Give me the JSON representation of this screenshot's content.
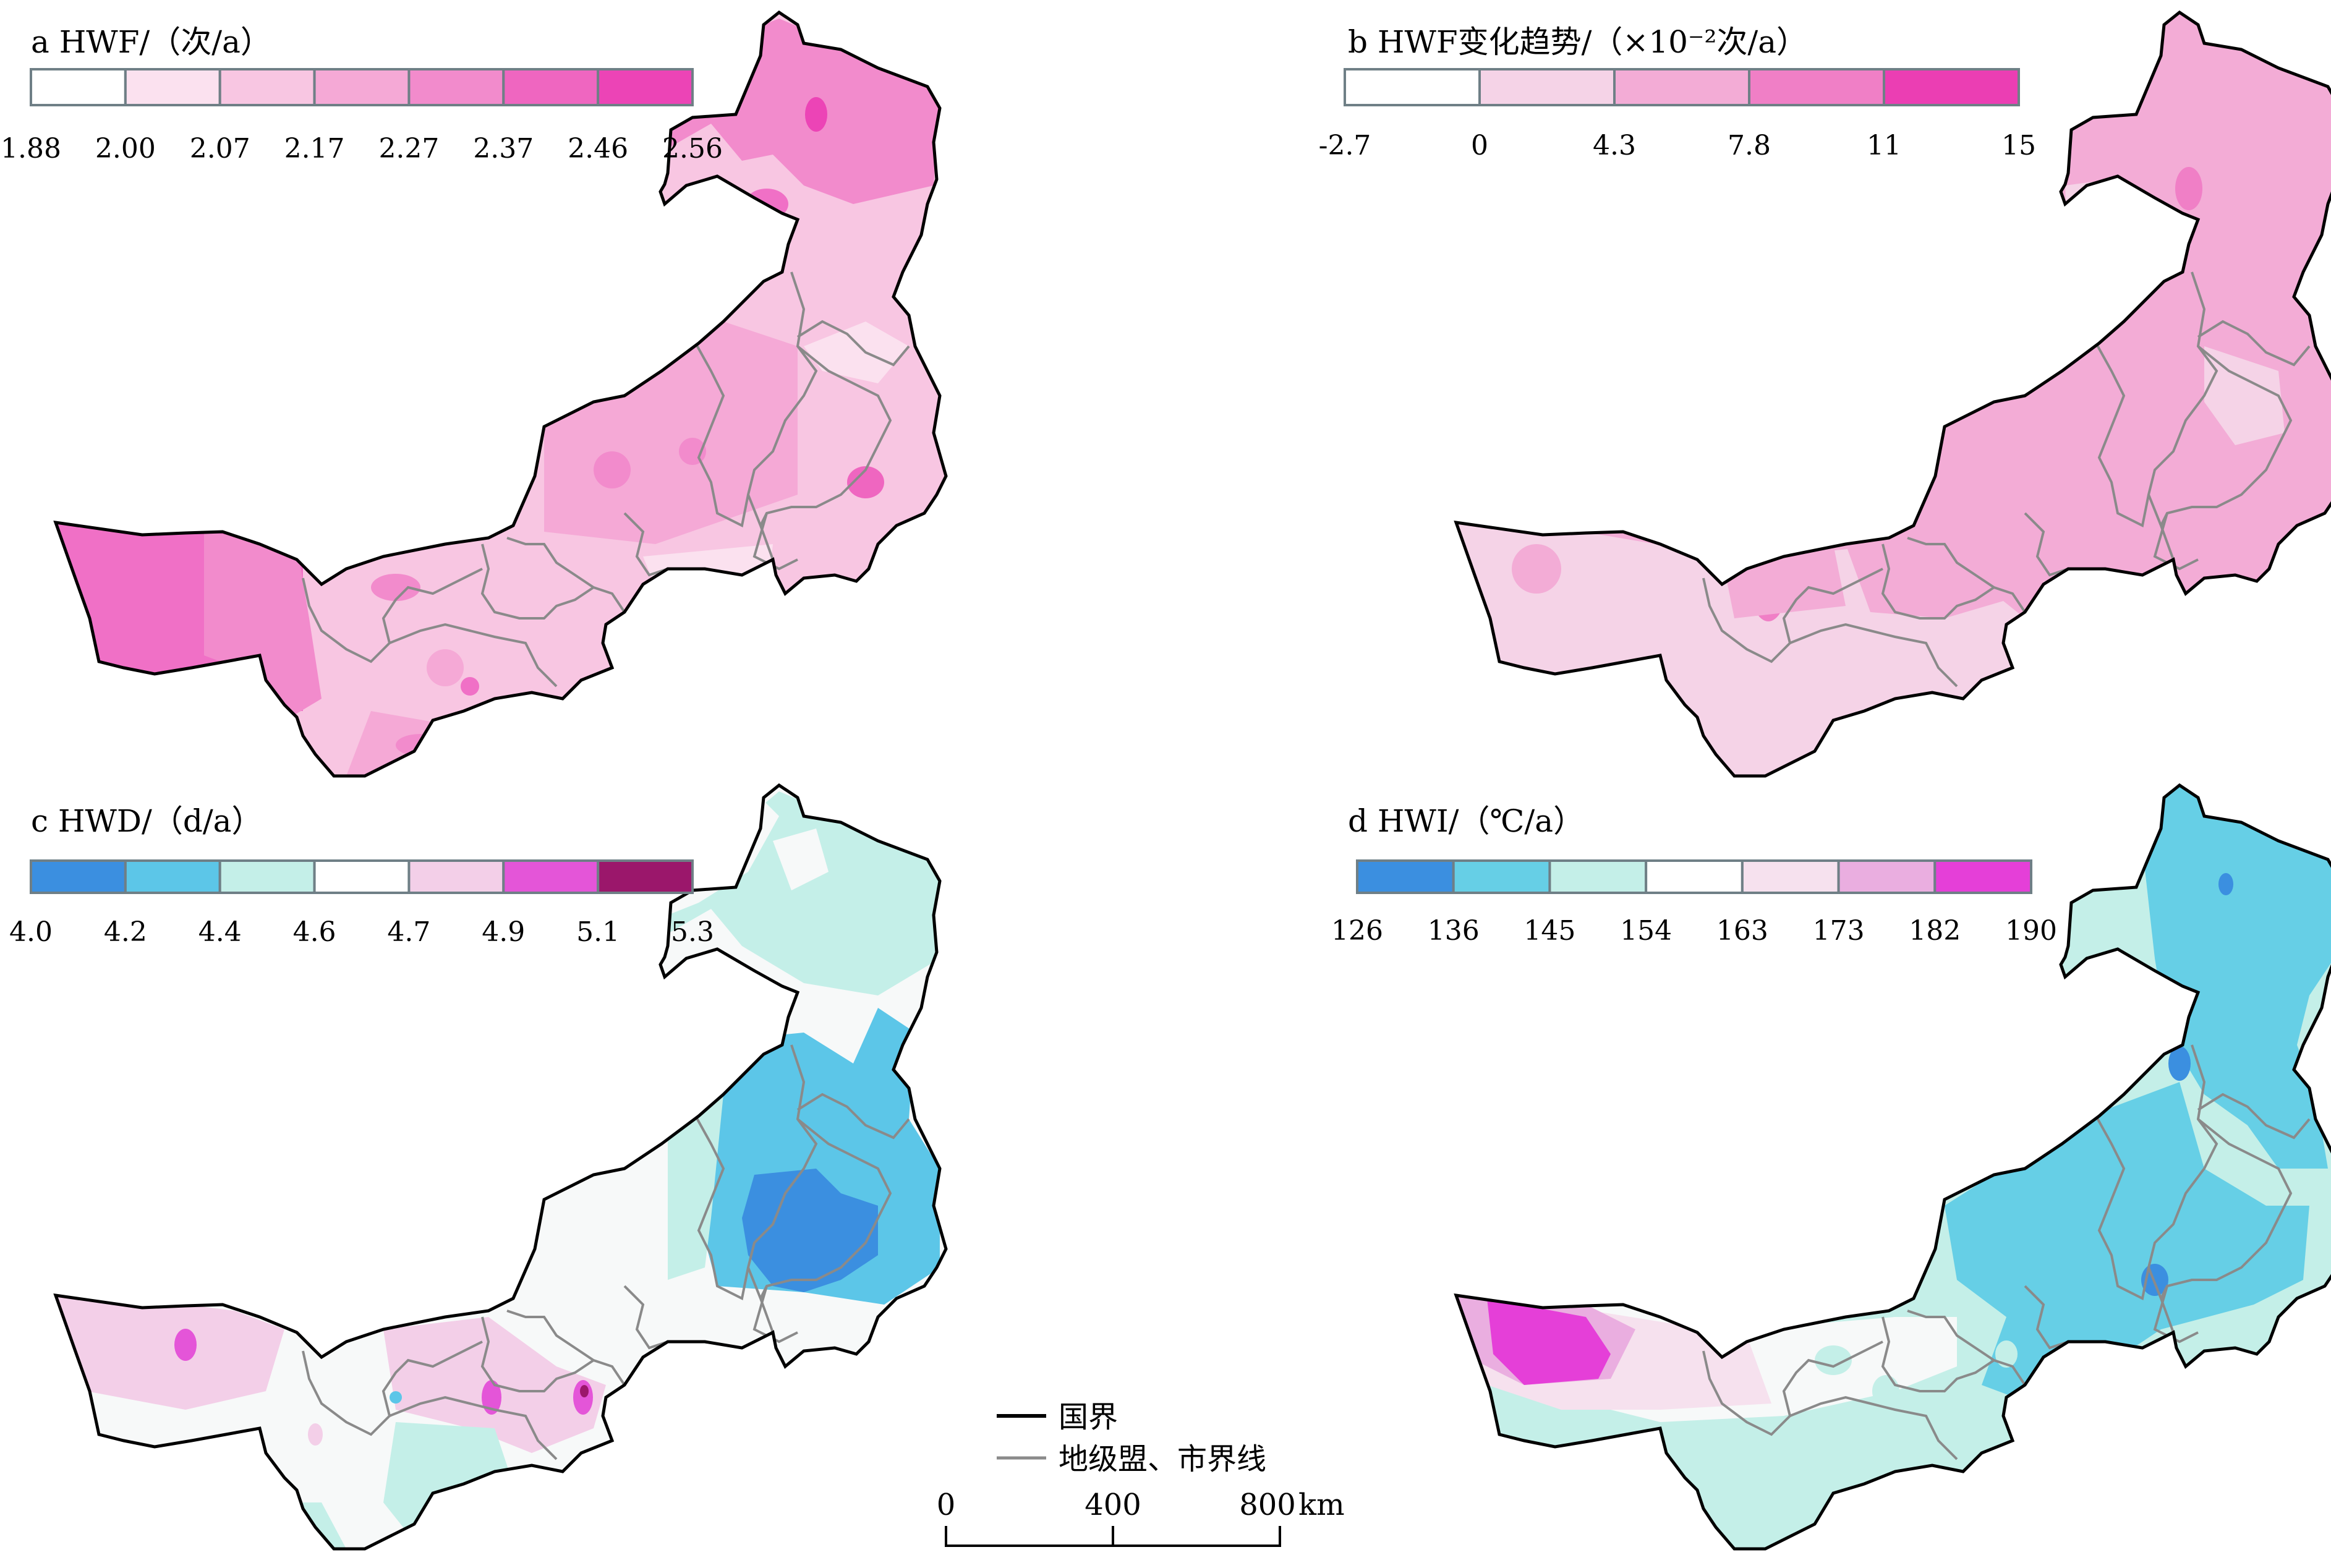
{
  "panels": {
    "a": {
      "title": "a  HWF/（次/a）",
      "colors": [
        "#ffffff",
        "#fbe1ef",
        "#f8c6e2",
        "#f5a9d6",
        "#f28bcc",
        "#ef66c0",
        "#ec44b6"
      ],
      "ticks": [
        "1.88",
        "2.00",
        "2.07",
        "2.17",
        "2.27",
        "2.37",
        "2.46",
        "2.56"
      ]
    },
    "b": {
      "title": "b  HWF变化趋势/（×10⁻²次/a）",
      "colors": [
        "#ffffff",
        "#f5d3e7",
        "#f3acd6",
        "#f07fc6",
        "#eb3eb3"
      ],
      "ticks": [
        "-2.7",
        "0",
        "4.3",
        "7.8",
        "11",
        "15"
      ]
    },
    "c": {
      "title": "c  HWD/（d/a）",
      "colors": [
        "#3b8fe0",
        "#5cc6e8",
        "#c4efe8",
        "#ffffff",
        "#f3cfe8",
        "#e455d8",
        "#9b176b"
      ],
      "ticks": [
        "4.0",
        "4.2",
        "4.4",
        "4.6",
        "4.7",
        "4.9",
        "5.1",
        "5.3"
      ]
    },
    "d": {
      "title": "d  HWI/（℃/a）",
      "colors": [
        "#3b8fe0",
        "#66cfe6",
        "#c4efe8",
        "#ffffff",
        "#f6e1ee",
        "#eaaee0",
        "#e53fd8"
      ],
      "ticks": [
        "126",
        "136",
        "145",
        "154",
        "163",
        "173",
        "182",
        "190"
      ]
    }
  },
  "legend": {
    "national_border": "国界",
    "prefecture_border": "地级盟、市界线"
  },
  "scalebar": {
    "ticks": [
      "0",
      "400",
      "800"
    ],
    "unit": "km"
  },
  "map_colors": {
    "national_border": "#000000",
    "prefecture_border": "#8a8a8a"
  }
}
